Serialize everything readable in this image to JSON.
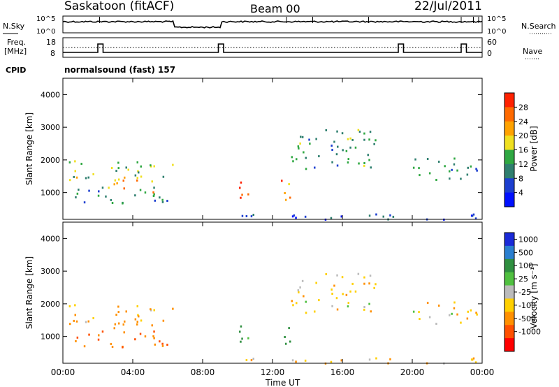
{
  "header": {
    "station": "Saskatoon (fitACF)",
    "beam": "Beam 00",
    "date": "22/Jul/2011"
  },
  "strip": {
    "nsky_label": "N.Sky",
    "nsky_ticks": [
      "10^5",
      "10^0"
    ],
    "nsearch_label": "N.Search",
    "nsearch_ticks": [
      "10^5",
      "10^0"
    ],
    "freq_label_1": "Freq.",
    "freq_label_2": "[MHz]",
    "freq_ticks": [
      "18",
      "8"
    ],
    "nave_label": "Nave",
    "nave_ticks": [
      "60",
      "0"
    ],
    "cpid_label": "CPID",
    "cpid_value": "normalsound (fast) 157"
  },
  "panels": {
    "power": {
      "ylabel": "Slant Range [km]",
      "yticks": [
        "4000",
        "3000",
        "2000",
        "1000"
      ],
      "colorbar_label": "Power [dB]",
      "colorbar_ticks": [
        "28",
        "24",
        "20",
        "16",
        "12",
        "8",
        "4"
      ],
      "colors": [
        "#ff2200",
        "#ff6a00",
        "#ffa200",
        "#f0e020",
        "#2fa842",
        "#2f7f6f",
        "#1c3fd0",
        "#0010ff"
      ]
    },
    "velocity": {
      "ylabel": "Slant Range [km]",
      "yticks": [
        "4000",
        "3000",
        "2000",
        "1000"
      ],
      "colorbar_label": "Velocity [m s⁻¹]",
      "colorbar_ticks": [
        "1000",
        "500",
        "100",
        "25",
        "-25",
        "-100",
        "-500",
        "-1000"
      ],
      "colors": [
        "#1a2ad8",
        "#2a7fd0",
        "#2f8f40",
        "#50c040",
        "#bbbbbb",
        "#ffd000",
        "#ff9000",
        "#ff5000",
        "#ff0000"
      ]
    }
  },
  "xaxis": {
    "label": "Time UT",
    "ticks": [
      "00:00",
      "04:00",
      "08:00",
      "12:00",
      "16:00",
      "20:00",
      "00:00"
    ]
  },
  "chart_data": {
    "type": "heatmap",
    "title": "Saskatoon (fitACF)",
    "subtitle": "Beam 00",
    "date": "22/Jul/2011",
    "x_label": "Time UT",
    "x_range_hours": [
      0,
      24
    ],
    "y_label": "Slant Range [km]",
    "y_range_km": [
      180,
      4500
    ],
    "data_gap_hours": [
      6.3,
      9.0
    ],
    "frequency_mhz": {
      "typical": 12,
      "steps_to_14": [
        [
          2.0,
          2.3
        ],
        [
          8.9,
          9.2
        ],
        [
          19.2,
          19.5
        ],
        [
          22.8,
          23.1
        ]
      ]
    },
    "power_db_range": [
      0,
      30
    ],
    "velocity_range": [
      -1000,
      1000
    ],
    "scatter_regions": [
      {
        "t": [
          0.0,
          6.3
        ],
        "range_km": [
          1400,
          2000
        ],
        "power_db": 14,
        "velocity": -50
      },
      {
        "t": [
          0.0,
          6.3
        ],
        "range_km": [
          700,
          1200
        ],
        "power_db": 10,
        "velocity": -300
      },
      {
        "t": [
          2.5,
          5.5
        ],
        "range_km": [
          1000,
          1500
        ],
        "power_db": 20,
        "velocity": -200
      },
      {
        "t": [
          9.8,
          10.8
        ],
        "range_km": [
          800,
          1400
        ],
        "power_db": 28,
        "velocity": 100
      },
      {
        "t": [
          12.0,
          13.0
        ],
        "range_km": [
          800,
          1400
        ],
        "power_db": 22,
        "velocity": 100
      },
      {
        "t": [
          13.0,
          18.0
        ],
        "range_km": [
          1700,
          3000
        ],
        "power_db": 12,
        "velocity": -25
      },
      {
        "t": [
          9.0,
          24.0
        ],
        "range_km": [
          200,
          400
        ],
        "power_db": 6,
        "velocity": -50
      },
      {
        "t": [
          20.0,
          24.0
        ],
        "range_km": [
          1400,
          2100
        ],
        "power_db": 10,
        "velocity": -25
      }
    ]
  }
}
